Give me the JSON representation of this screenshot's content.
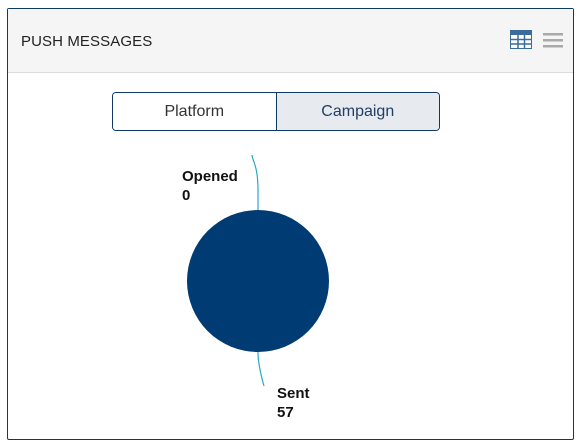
{
  "widget": {
    "title": "PUSH MESSAGES",
    "icons": [
      "table-icon",
      "menu-icon"
    ]
  },
  "toggle": {
    "options": [
      "Platform",
      "Campaign"
    ],
    "selected": "Campaign"
  },
  "colors": {
    "pie": "#003b73",
    "leader_line": "#2aa7c9",
    "border": "#0d3a63"
  },
  "chart_data": {
    "type": "pie",
    "categories": [
      "Opened",
      "Sent"
    ],
    "values": [
      0,
      57
    ],
    "title": "",
    "legend": false
  }
}
